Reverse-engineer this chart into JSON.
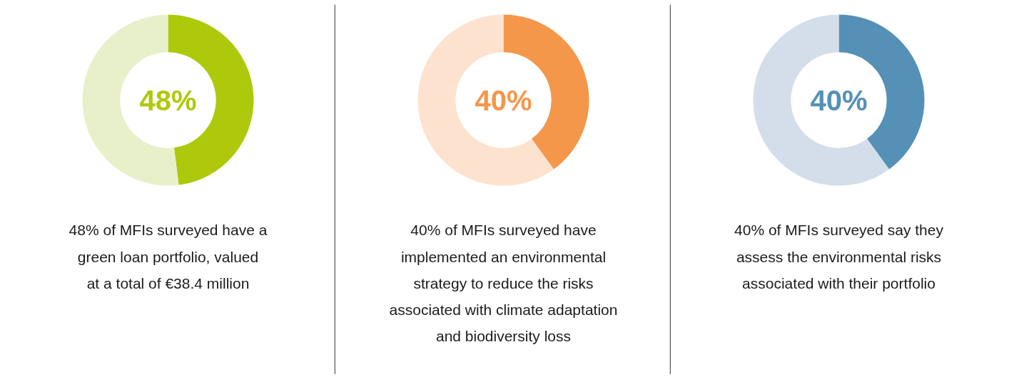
{
  "chart_data": [
    {
      "type": "donut",
      "categories": [
        null,
        null
      ],
      "values": [
        48,
        52
      ],
      "colors": [
        "#aec90b",
        "#e8f0c9"
      ],
      "annotations": [
        "48%",
        "48% of MFIs surveyed have a",
        "green loan portfolio, valued",
        "at a total of €38.4 million"
      ]
    },
    {
      "type": "donut",
      "categories": [
        null,
        null
      ],
      "values": [
        40,
        60
      ],
      "colors": [
        "#f4974a",
        "#fde3cf"
      ],
      "annotations": [
        "40%",
        "40% of MFIs surveyed have",
        "implemented an environmental",
        "strategy to reduce the risks",
        "associated with climate adaptation",
        "and biodiversity loss"
      ]
    },
    {
      "type": "donut",
      "categories": [
        null,
        null
      ],
      "values": [
        40,
        60
      ],
      "colors": [
        "#5590b6",
        "#d3deea"
      ],
      "annotations": [
        "40%",
        "40% of MFIs surveyed say they",
        "assess the environmental risks",
        "associated with their portfolio"
      ]
    }
  ]
}
